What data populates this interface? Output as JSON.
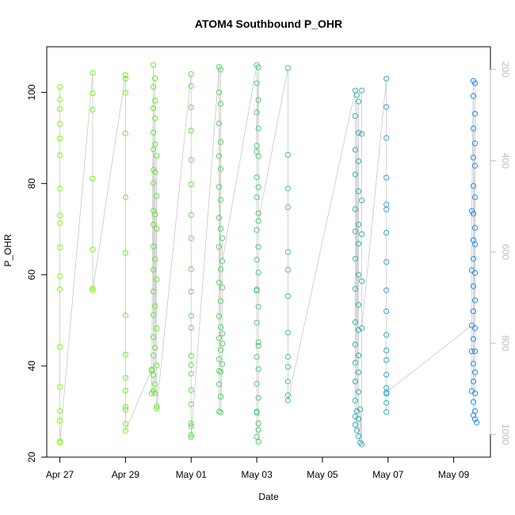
{
  "chart_data": {
    "type": "scatter",
    "title": "ATOM4 Southbound P_OHR",
    "xlabel": "Date",
    "ylabel": "P_OHR",
    "xlim": [
      26.6,
      40.12
    ],
    "ylim": [
      20,
      110
    ],
    "x_ticks": [
      {
        "value": 27,
        "label": "Apr 27"
      },
      {
        "value": 29,
        "label": "Apr 29"
      },
      {
        "value": 31,
        "label": "May 01"
      },
      {
        "value": 33,
        "label": "May 03"
      },
      {
        "value": 35,
        "label": "May 05"
      },
      {
        "value": 37,
        "label": "May 07"
      },
      {
        "value": 39,
        "label": "May 09"
      }
    ],
    "y_ticks": [
      20,
      40,
      60,
      80,
      100
    ],
    "secondary_axis": {
      "side": "right",
      "color": "#bdbdbd",
      "reversed": true,
      "ylim": [
        1050,
        150
      ],
      "ticks": [
        200,
        400,
        600,
        800,
        1000
      ]
    },
    "point_color_range": [
      "#7fff00",
      "#1e90ff"
    ],
    "grid": false,
    "series": [
      {
        "points": [
          [
            27.0,
            101.2
          ],
          [
            27.0,
            98.4
          ],
          [
            27.0,
            96.3
          ],
          [
            27.0,
            93.1
          ],
          [
            27.0,
            89.9
          ],
          [
            27.0,
            86.2
          ],
          [
            27.0,
            78.9
          ],
          [
            27.0,
            73.0
          ],
          [
            27.0,
            71.3
          ],
          [
            27.0,
            66.0
          ],
          [
            27.0,
            59.7
          ],
          [
            27.0,
            56.8
          ],
          [
            27.0,
            44.2
          ],
          [
            27.0,
            35.4
          ],
          [
            27.0,
            30.1
          ],
          [
            27.0,
            28.0
          ],
          [
            27.0,
            23.5
          ],
          [
            27.0,
            23.2
          ],
          [
            28.0,
            104.3
          ],
          [
            28.0,
            99.8
          ],
          [
            28.0,
            96.2
          ],
          [
            28.0,
            81.1
          ],
          [
            28.0,
            65.5
          ],
          [
            28.0,
            57.0
          ],
          [
            28.0,
            56.6
          ],
          [
            29.0,
            103.8
          ],
          [
            29.0,
            103.0
          ],
          [
            29.0,
            99.9
          ],
          [
            29.0,
            91.0
          ],
          [
            29.0,
            77.0
          ],
          [
            29.0,
            64.8
          ],
          [
            29.0,
            51.1
          ],
          [
            29.0,
            42.5
          ],
          [
            29.0,
            37.4
          ],
          [
            29.0,
            34.6
          ],
          [
            29.0,
            31.0
          ],
          [
            29.0,
            30.4
          ],
          [
            29.0,
            27.3
          ],
          [
            29.0,
            25.8
          ],
          [
            29.85,
            106.0
          ],
          [
            29.9,
            103.1
          ],
          [
            29.85,
            101.2
          ],
          [
            29.9,
            98.2
          ],
          [
            29.85,
            96.5
          ],
          [
            29.9,
            94.3
          ],
          [
            29.85,
            91.2
          ],
          [
            29.9,
            88.6
          ],
          [
            29.85,
            87.5
          ],
          [
            29.95,
            86.1
          ],
          [
            29.85,
            83.0
          ],
          [
            29.9,
            82.5
          ],
          [
            29.85,
            80.1
          ],
          [
            29.95,
            77.3
          ],
          [
            29.85,
            74.0
          ],
          [
            29.9,
            73.2
          ],
          [
            29.85,
            71.0
          ],
          [
            29.95,
            70.1
          ],
          [
            29.85,
            66.2
          ],
          [
            29.9,
            63.4
          ],
          [
            29.85,
            61.1
          ],
          [
            29.95,
            59.0
          ],
          [
            29.85,
            56.3
          ],
          [
            29.9,
            53.1
          ],
          [
            29.85,
            51.2
          ],
          [
            29.95,
            48.2
          ],
          [
            29.85,
            46.3
          ],
          [
            29.9,
            44.0
          ],
          [
            29.85,
            42.3
          ],
          [
            29.95,
            40.1
          ],
          [
            29.8,
            39.2
          ],
          [
            29.85,
            38.0
          ],
          [
            29.9,
            36.0
          ],
          [
            29.85,
            34.5
          ],
          [
            29.9,
            34.0
          ],
          [
            29.95,
            31.2
          ],
          [
            29.95,
            30.7
          ],
          [
            29.8,
            39.0
          ],
          [
            29.8,
            34.0
          ],
          [
            31.0,
            104.0
          ],
          [
            31.0,
            101.4
          ],
          [
            31.0,
            96.7
          ],
          [
            31.0,
            91.6
          ],
          [
            31.0,
            85.2
          ],
          [
            31.0,
            79.8
          ],
          [
            31.0,
            73.1
          ],
          [
            31.0,
            68.0
          ],
          [
            31.0,
            61.2
          ],
          [
            31.0,
            56.3
          ],
          [
            31.0,
            51.0
          ],
          [
            31.0,
            48.4
          ],
          [
            31.0,
            42.2
          ],
          [
            31.0,
            40.2
          ],
          [
            31.0,
            38.3
          ],
          [
            31.0,
            34.7
          ],
          [
            31.0,
            31.6
          ],
          [
            31.0,
            27.4
          ],
          [
            31.0,
            26.8
          ],
          [
            31.0,
            24.9
          ],
          [
            31.0,
            24.4
          ],
          [
            31.85,
            105.6
          ],
          [
            31.9,
            105.0
          ],
          [
            31.85,
            100.0
          ],
          [
            31.9,
            97.5
          ],
          [
            31.85,
            93.2
          ],
          [
            31.9,
            89.1
          ],
          [
            31.85,
            86.0
          ],
          [
            31.9,
            83.2
          ],
          [
            31.85,
            79.3
          ],
          [
            31.9,
            76.4
          ],
          [
            31.85,
            72.5
          ],
          [
            31.9,
            70.1
          ],
          [
            31.85,
            66.1
          ],
          [
            31.9,
            61.2
          ],
          [
            31.85,
            58.3
          ],
          [
            31.9,
            54.2
          ],
          [
            31.85,
            50.9
          ],
          [
            31.9,
            48.5
          ],
          [
            31.85,
            46.1
          ],
          [
            31.9,
            43.5
          ],
          [
            31.85,
            41.5
          ],
          [
            31.9,
            38.7
          ],
          [
            31.85,
            36.0
          ],
          [
            31.9,
            33.3
          ],
          [
            31.85,
            30.0
          ],
          [
            31.9,
            29.8
          ],
          [
            31.85,
            38.9
          ],
          [
            31.95,
            40.4
          ],
          [
            31.95,
            44.9
          ],
          [
            31.95,
            47.1
          ],
          [
            31.95,
            57.2
          ],
          [
            31.95,
            68.0
          ],
          [
            31.95,
            63.0
          ],
          [
            33.0,
            106.0
          ],
          [
            33.05,
            105.5
          ],
          [
            33.0,
            102.0
          ],
          [
            33.05,
            98.3
          ],
          [
            33.0,
            95.6
          ],
          [
            33.05,
            92.1
          ],
          [
            33.0,
            88.3
          ],
          [
            33.05,
            86.0
          ],
          [
            33.0,
            81.4
          ],
          [
            33.05,
            79.2
          ],
          [
            33.0,
            77.0
          ],
          [
            33.05,
            73.5
          ],
          [
            33.0,
            69.8
          ],
          [
            33.05,
            66.1
          ],
          [
            33.0,
            63.3
          ],
          [
            33.05,
            60.5
          ],
          [
            33.0,
            56.5
          ],
          [
            33.05,
            53.0
          ],
          [
            33.0,
            49.5
          ],
          [
            33.05,
            45.2
          ],
          [
            33.0,
            42.0
          ],
          [
            33.05,
            39.3
          ],
          [
            33.0,
            36.1
          ],
          [
            33.05,
            33.0
          ],
          [
            33.0,
            30.0
          ],
          [
            33.05,
            27.4
          ],
          [
            33.0,
            24.5
          ],
          [
            33.05,
            23.4
          ],
          [
            33.05,
            26.0
          ],
          [
            33.0,
            29.7
          ],
          [
            33.05,
            44.4
          ],
          [
            33.0,
            56.8
          ],
          [
            33.05,
            71.8
          ],
          [
            33.0,
            87.0
          ],
          [
            33.95,
            105.3
          ],
          [
            33.95,
            86.3
          ],
          [
            33.95,
            78.9
          ],
          [
            33.95,
            74.8
          ],
          [
            33.95,
            65.0
          ],
          [
            33.95,
            61.1
          ],
          [
            33.95,
            55.3
          ],
          [
            33.95,
            47.3
          ],
          [
            33.95,
            42.0
          ],
          [
            33.95,
            39.8
          ],
          [
            33.95,
            36.6
          ],
          [
            33.95,
            33.6
          ],
          [
            33.95,
            32.4
          ],
          [
            36.0,
            100.4
          ],
          [
            36.05,
            99.4
          ],
          [
            36.1,
            98.0
          ],
          [
            36.0,
            94.8
          ],
          [
            36.1,
            91.1
          ],
          [
            36.0,
            87.4
          ],
          [
            36.1,
            84.9
          ],
          [
            36.0,
            82.0
          ],
          [
            36.1,
            78.3
          ],
          [
            36.0,
            74.4
          ],
          [
            36.1,
            71.0
          ],
          [
            36.0,
            69.5
          ],
          [
            36.1,
            66.8
          ],
          [
            36.0,
            63.5
          ],
          [
            36.1,
            60.0
          ],
          [
            36.0,
            56.9
          ],
          [
            36.1,
            53.4
          ],
          [
            36.0,
            49.6
          ],
          [
            36.1,
            47.9
          ],
          [
            36.0,
            44.7
          ],
          [
            36.1,
            42.3
          ],
          [
            36.0,
            40.7
          ],
          [
            36.1,
            38.6
          ],
          [
            36.0,
            36.6
          ],
          [
            36.1,
            34.3
          ],
          [
            36.0,
            32.4
          ],
          [
            36.05,
            30.1
          ],
          [
            36.1,
            28.4
          ],
          [
            36.0,
            27.1
          ],
          [
            36.05,
            25.9
          ],
          [
            36.1,
            24.6
          ],
          [
            36.15,
            23.2
          ],
          [
            36.2,
            22.8
          ],
          [
            36.0,
            28.9
          ],
          [
            36.15,
            30.5
          ],
          [
            36.2,
            100.4
          ],
          [
            36.2,
            90.9
          ],
          [
            36.2,
            76.3
          ],
          [
            36.2,
            68.9
          ],
          [
            36.2,
            58.6
          ],
          [
            36.2,
            48.3
          ],
          [
            36.95,
            103.0
          ],
          [
            36.95,
            96.8
          ],
          [
            36.95,
            90.0
          ],
          [
            36.95,
            81.3
          ],
          [
            36.95,
            75.4
          ],
          [
            36.95,
            74.3
          ],
          [
            36.95,
            69.2
          ],
          [
            36.95,
            62.8
          ],
          [
            36.95,
            56.6
          ],
          [
            36.95,
            52.0
          ],
          [
            36.95,
            46.8
          ],
          [
            36.95,
            43.4
          ],
          [
            36.95,
            41.3
          ],
          [
            36.95,
            38.1
          ],
          [
            36.95,
            35.2
          ],
          [
            36.95,
            33.9
          ],
          [
            36.95,
            31.9
          ],
          [
            36.95,
            29.9
          ],
          [
            36.95,
            34.2
          ],
          [
            39.6,
            102.5
          ],
          [
            39.65,
            102.0
          ],
          [
            39.6,
            99.2
          ],
          [
            39.65,
            95.3
          ],
          [
            39.6,
            92.1
          ],
          [
            39.65,
            88.8
          ],
          [
            39.6,
            85.7
          ],
          [
            39.65,
            83.9
          ],
          [
            39.6,
            79.5
          ],
          [
            39.65,
            77.0
          ],
          [
            39.6,
            73.4
          ],
          [
            39.65,
            70.3
          ],
          [
            39.6,
            67.6
          ],
          [
            39.65,
            66.7
          ],
          [
            39.6,
            63.5
          ],
          [
            39.65,
            60.4
          ],
          [
            39.6,
            57.5
          ],
          [
            39.65,
            54.4
          ],
          [
            39.6,
            52.0
          ],
          [
            39.65,
            48.3
          ],
          [
            39.6,
            45.9
          ],
          [
            39.65,
            43.2
          ],
          [
            39.6,
            40.5
          ],
          [
            39.65,
            38.6
          ],
          [
            39.6,
            36.6
          ],
          [
            39.65,
            34.0
          ],
          [
            39.6,
            32.1
          ],
          [
            39.65,
            30.1
          ],
          [
            39.6,
            29.2
          ],
          [
            39.65,
            28.3
          ],
          [
            39.7,
            27.6
          ],
          [
            39.55,
            48.9
          ],
          [
            39.55,
            43.2
          ],
          [
            39.55,
            34.5
          ],
          [
            39.55,
            61.0
          ],
          [
            39.55,
            74.0
          ]
        ]
      }
    ]
  }
}
